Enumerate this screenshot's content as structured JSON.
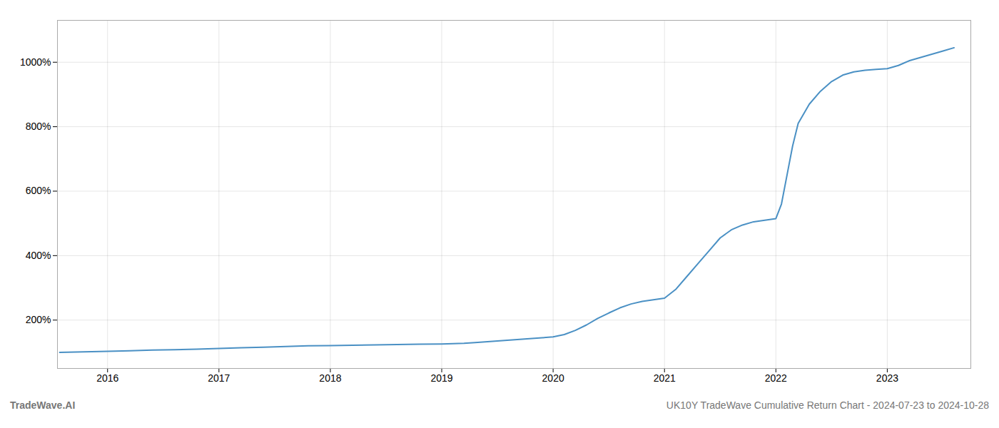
{
  "chart_data": {
    "type": "line",
    "annotations": [
      "TradeWave.AI",
      "UK10Y TradeWave Cumulative Return Chart - 2024-07-23 to 2024-10-28"
    ],
    "x": [
      2015.57,
      2016.0,
      2016.2,
      2016.4,
      2016.6,
      2016.8,
      2017.0,
      2017.2,
      2017.4,
      2017.6,
      2017.8,
      2018.0,
      2018.2,
      2018.4,
      2018.6,
      2018.8,
      2019.0,
      2019.1,
      2019.2,
      2019.3,
      2019.5,
      2019.7,
      2019.9,
      2020.0,
      2020.1,
      2020.2,
      2020.3,
      2020.4,
      2020.5,
      2020.6,
      2020.7,
      2020.8,
      2020.9,
      2021.0,
      2021.1,
      2021.2,
      2021.3,
      2021.4,
      2021.5,
      2021.6,
      2021.7,
      2021.8,
      2021.9,
      2022.0,
      2022.05,
      2022.1,
      2022.15,
      2022.2,
      2022.3,
      2022.4,
      2022.5,
      2022.6,
      2022.7,
      2022.8,
      2022.9,
      2023.0,
      2023.1,
      2023.2,
      2023.3,
      2023.4,
      2023.5,
      2023.6
    ],
    "values": [
      100,
      103,
      105,
      107,
      108,
      110,
      112,
      114,
      116,
      118,
      120,
      121,
      122,
      123,
      124,
      125,
      126,
      127,
      128,
      130,
      135,
      140,
      145,
      148,
      155,
      168,
      185,
      205,
      222,
      238,
      250,
      258,
      263,
      268,
      295,
      335,
      375,
      415,
      455,
      480,
      495,
      505,
      510,
      515,
      560,
      650,
      740,
      810,
      870,
      910,
      940,
      960,
      970,
      975,
      978,
      980,
      990,
      1005,
      1015,
      1025,
      1035,
      1045
    ],
    "color": "#4a90c4",
    "xlim": [
      2015.55,
      2023.75
    ],
    "xticks": [
      2016,
      2017,
      2018,
      2019,
      2020,
      2021,
      2022,
      2023
    ],
    "ylim": [
      50,
      1130
    ],
    "yticks": [
      {
        "value": 200,
        "label": "200%"
      },
      {
        "value": 400,
        "label": "400%"
      },
      {
        "value": 600,
        "label": "600%"
      },
      {
        "value": 800,
        "label": "800%"
      },
      {
        "value": 1000,
        "label": "1000%"
      }
    ],
    "grid": true
  }
}
